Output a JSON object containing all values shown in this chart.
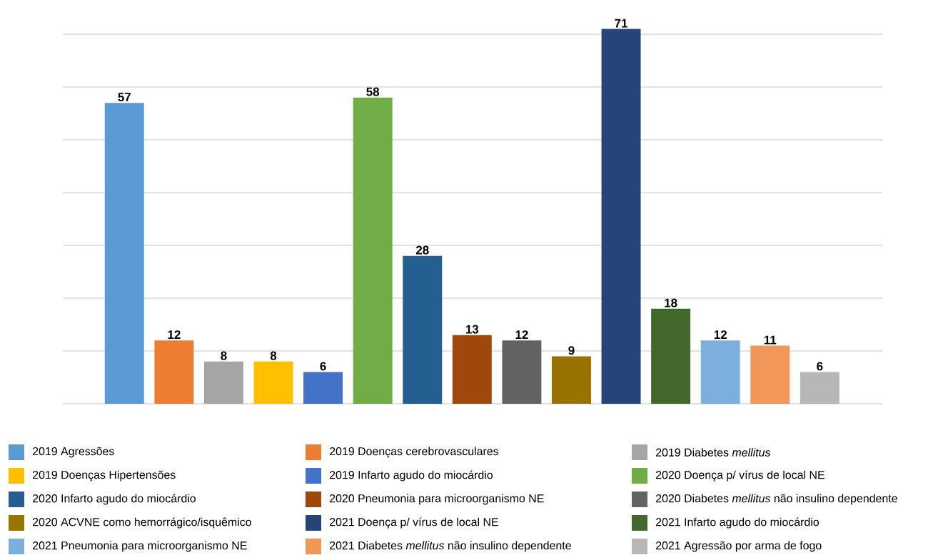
{
  "chart_data": {
    "type": "bar",
    "stacked": true,
    "categories": [
      null,
      null,
      null,
      null,
      null,
      null,
      null,
      null,
      null,
      null,
      null,
      null,
      null,
      null,
      null
    ],
    "yticks": [
      {
        "value": 0,
        "label": null
      },
      {
        "value": 10,
        "label": null
      },
      {
        "value": 20,
        "label": null
      },
      {
        "value": 30,
        "label": null
      },
      {
        "value": 40,
        "label": null
      },
      {
        "value": 50,
        "label": null
      },
      {
        "value": 60,
        "label": null
      },
      {
        "value": 70,
        "label": null
      }
    ],
    "grid": "y",
    "data_labels": true,
    "legend": "bottom",
    "series": [
      {
        "name": "2019 Agressões",
        "color": "#5b9bd5",
        "values": [
          57,
          null,
          null,
          null,
          null,
          null,
          null,
          null,
          null,
          null,
          null,
          null,
          null,
          null,
          null
        ]
      },
      {
        "name": "2019 Doenças cerebrovasculares",
        "color": "#ed7d31",
        "values": [
          null,
          12,
          null,
          null,
          null,
          null,
          null,
          null,
          null,
          null,
          null,
          null,
          null,
          null,
          null
        ]
      },
      {
        "name": "2019 Diabetes *mellitus*",
        "color": "#a5a5a5",
        "values": [
          null,
          null,
          8,
          null,
          null,
          null,
          null,
          null,
          null,
          null,
          null,
          null,
          null,
          null,
          null
        ]
      },
      {
        "name": "2019 Doenças Hipertensões",
        "color": "#ffc000",
        "values": [
          null,
          null,
          null,
          8,
          null,
          null,
          null,
          null,
          null,
          null,
          null,
          null,
          null,
          null,
          null
        ]
      },
      {
        "name": "2019 Infarto agudo do miocárdio",
        "color": "#4472c4",
        "values": [
          null,
          null,
          null,
          null,
          6,
          null,
          null,
          null,
          null,
          null,
          null,
          null,
          null,
          null,
          null
        ]
      },
      {
        "name": "2020 Doença p/ vírus de local NE",
        "color": "#70ad47",
        "values": [
          null,
          null,
          null,
          null,
          null,
          58,
          null,
          null,
          null,
          null,
          null,
          null,
          null,
          null,
          null
        ]
      },
      {
        "name": "2020 Infarto agudo do miocárdio",
        "color": "#255e91",
        "values": [
          null,
          null,
          null,
          null,
          null,
          null,
          28,
          null,
          null,
          null,
          null,
          null,
          null,
          null,
          null
        ]
      },
      {
        "name": "2020 Pneumonia para microorganismo NE",
        "color": "#9e480e",
        "values": [
          null,
          null,
          null,
          null,
          null,
          null,
          null,
          13,
          null,
          null,
          null,
          null,
          null,
          null,
          null
        ]
      },
      {
        "name": "2020 Diabetes *mellitus* não insulino dependente",
        "color": "#636363",
        "values": [
          null,
          null,
          null,
          null,
          null,
          null,
          null,
          null,
          12,
          null,
          null,
          null,
          null,
          null,
          null
        ]
      },
      {
        "name": "2020 ACVNE como hemorrágico/isquêmico",
        "color": "#997300",
        "values": [
          null,
          null,
          null,
          null,
          null,
          null,
          null,
          null,
          null,
          9,
          null,
          null,
          null,
          null,
          null
        ]
      },
      {
        "name": "2021 Doença p/ vírus de local NE",
        "color": "#264478",
        "values": [
          null,
          null,
          null,
          null,
          null,
          null,
          null,
          null,
          null,
          null,
          71,
          null,
          null,
          null,
          null
        ]
      },
      {
        "name": "2021 Infarto agudo do miocárdio",
        "color": "#43682b",
        "values": [
          null,
          null,
          null,
          null,
          null,
          null,
          null,
          null,
          null,
          null,
          null,
          18,
          null,
          null,
          null
        ]
      },
      {
        "name": "2021 Pneumonia para microorganismo NE",
        "color": "#7cafdd",
        "values": [
          null,
          null,
          null,
          null,
          null,
          null,
          null,
          null,
          null,
          null,
          null,
          null,
          12,
          null,
          null
        ]
      },
      {
        "name": "2021 Diabetes *mellitus* não insulino dependente",
        "color": "#f1975a",
        "values": [
          null,
          null,
          null,
          null,
          null,
          null,
          null,
          null,
          null,
          null,
          null,
          null,
          null,
          11,
          null
        ]
      },
      {
        "name": "2021 Agressão por arma de fogo",
        "color": "#b7b7b7",
        "values": [
          null,
          null,
          null,
          null,
          null,
          null,
          null,
          null,
          null,
          null,
          null,
          null,
          null,
          null,
          6
        ]
      }
    ]
  }
}
